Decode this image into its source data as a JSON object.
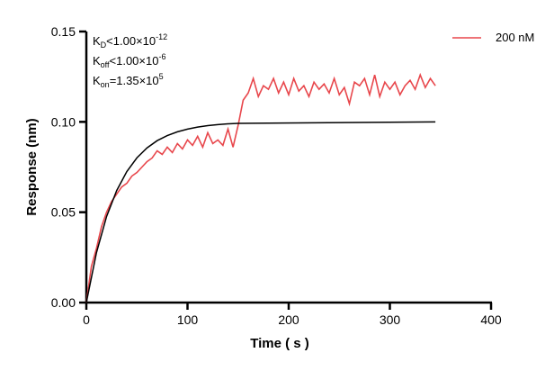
{
  "chart_data": {
    "type": "line",
    "xlabel": "Time ( s )",
    "ylabel": "Response (nm)",
    "xlim": [
      0,
      400
    ],
    "ylim": [
      0,
      0.15
    ],
    "xticks": [
      "0",
      "100",
      "200",
      "300",
      "400"
    ],
    "yticks": [
      "0.00",
      "0.05",
      "0.10",
      "0.15"
    ],
    "grid": false,
    "legend_position": "top-right",
    "annotations": [
      {
        "base": "K",
        "sub": "D",
        "rel": "<1.00×10",
        "sup": "-12"
      },
      {
        "base": "K",
        "sub": "off",
        "rel": "<1.00×10",
        "sup": "-6"
      },
      {
        "base": "K",
        "sub": "on",
        "rel": "=1.35×10",
        "sup": "5"
      }
    ],
    "series": [
      {
        "name": "200 nM",
        "color": "#e8474c",
        "x": [
          0,
          5,
          10,
          15,
          20,
          25,
          30,
          35,
          40,
          45,
          50,
          55,
          60,
          65,
          70,
          75,
          80,
          85,
          90,
          95,
          100,
          105,
          110,
          115,
          120,
          125,
          130,
          135,
          140,
          145,
          150,
          155,
          160,
          165,
          170,
          175,
          180,
          185,
          190,
          195,
          200,
          205,
          210,
          215,
          220,
          225,
          230,
          235,
          240,
          245,
          250,
          255,
          260,
          265,
          270,
          275,
          280,
          285,
          290,
          295,
          300,
          305,
          310,
          315,
          320,
          325,
          330,
          335,
          340,
          345
        ],
        "y": [
          0.0,
          0.02,
          0.03,
          0.042,
          0.05,
          0.056,
          0.06,
          0.064,
          0.066,
          0.07,
          0.072,
          0.075,
          0.078,
          0.08,
          0.084,
          0.082,
          0.086,
          0.083,
          0.088,
          0.085,
          0.09,
          0.087,
          0.092,
          0.086,
          0.094,
          0.088,
          0.09,
          0.087,
          0.096,
          0.086,
          0.098,
          0.112,
          0.116,
          0.124,
          0.114,
          0.12,
          0.118,
          0.124,
          0.116,
          0.122,
          0.115,
          0.124,
          0.117,
          0.12,
          0.114,
          0.122,
          0.118,
          0.121,
          0.116,
          0.124,
          0.115,
          0.119,
          0.11,
          0.122,
          0.12,
          0.124,
          0.115,
          0.126,
          0.114,
          0.122,
          0.118,
          0.122,
          0.115,
          0.12,
          0.123,
          0.118,
          0.126,
          0.119,
          0.124,
          0.12
        ]
      },
      {
        "color": "#000000",
        "x": [
          0,
          10,
          20,
          30,
          40,
          50,
          60,
          70,
          80,
          90,
          100,
          110,
          120,
          130,
          140,
          150,
          345
        ],
        "y": [
          0,
          0.0276,
          0.0476,
          0.062,
          0.0725,
          0.0801,
          0.0856,
          0.0896,
          0.0924,
          0.0945,
          0.096,
          0.0971,
          0.0979,
          0.0985,
          0.0989,
          0.0992,
          0.1
        ]
      }
    ]
  }
}
